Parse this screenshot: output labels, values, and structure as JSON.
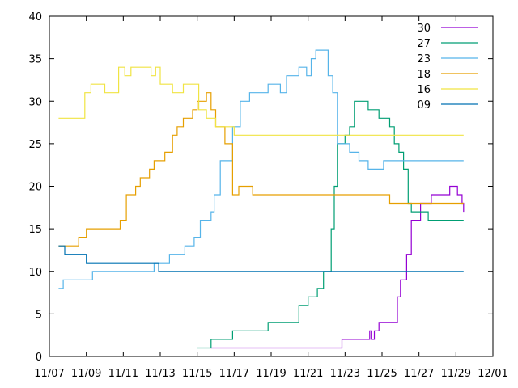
{
  "chart_data": {
    "type": "line",
    "title": "",
    "xlabel": "",
    "ylabel": "",
    "xlim": [
      "2023-11-07",
      "2023-12-01"
    ],
    "ylim": [
      0,
      40
    ],
    "grid": false,
    "legend_position": "top-right",
    "x_ticks": [
      "11/07",
      "11/09",
      "11/11",
      "11/13",
      "11/15",
      "11/17",
      "11/19",
      "11/21",
      "11/23",
      "11/25",
      "11/27",
      "11/29",
      "12/01"
    ],
    "y_ticks": [
      "0",
      "5",
      "10",
      "15",
      "20",
      "25",
      "30",
      "35",
      "40"
    ],
    "series": [
      {
        "name": "30",
        "color": "#9400d3",
        "x": [
          "2023-11-15T18:00",
          "2023-11-22T20:00",
          "2023-11-22T20:00",
          "2023-11-24T06:00",
          "2023-11-24T08:00",
          "2023-11-24T10:00",
          "2023-11-24T14:00",
          "2023-11-24T20:00",
          "2023-11-25T08:00",
          "2023-11-25T20:00",
          "2023-11-26T00:00",
          "2023-11-26T08:00",
          "2023-11-26T14:00",
          "2023-11-26T20:00",
          "2023-11-27T02:00",
          "2023-11-27T10:00",
          "2023-11-27T16:00",
          "2023-11-28T12:00",
          "2023-11-28T16:00",
          "2023-11-29T02:00",
          "2023-11-29T08:00",
          "2023-11-29T10:00"
        ],
        "y": [
          1,
          1,
          2,
          2,
          3,
          2,
          3,
          4,
          4,
          7,
          9,
          12,
          16,
          16,
          18,
          18,
          19,
          19,
          20,
          19,
          18,
          17
        ]
      },
      {
        "name": "27",
        "color": "#009e73",
        "x": [
          "2023-11-15T00:00",
          "2023-11-15T18:00",
          "2023-11-16T22:00",
          "2023-11-18T20:00",
          "2023-11-20T12:00",
          "2023-11-21T00:00",
          "2023-11-21T12:00",
          "2023-11-21T20:00",
          "2023-11-22T06:00",
          "2023-11-22T10:00",
          "2023-11-22T14:00",
          "2023-11-23T00:00",
          "2023-11-23T06:00",
          "2023-11-23T12:00",
          "2023-11-24T06:00",
          "2023-11-24T20:00",
          "2023-11-25T10:00",
          "2023-11-25T16:00",
          "2023-11-25T22:00",
          "2023-11-26T04:00",
          "2023-11-26T10:00",
          "2023-11-26T14:00",
          "2023-11-26T20:00",
          "2023-11-27T12:00",
          "2023-11-27T22:00",
          "2023-11-29T10:00"
        ],
        "y": [
          1,
          2,
          3,
          4,
          6,
          7,
          8,
          10,
          15,
          20,
          25,
          26,
          27,
          30,
          29,
          28,
          27,
          25,
          24,
          22,
          18,
          17,
          17,
          16,
          16,
          16
        ]
      },
      {
        "name": "23",
        "color": "#56b4e9",
        "x": [
          "2023-11-07T12:00",
          "2023-11-07T18:00",
          "2023-11-08T22:00",
          "2023-11-09T08:00",
          "2023-11-12T16:00",
          "2023-11-13T12:00",
          "2023-11-14T08:00",
          "2023-11-14T20:00",
          "2023-11-15T04:00",
          "2023-11-15T18:00",
          "2023-11-15T22:00",
          "2023-11-16T06:00",
          "2023-11-16T16:00",
          "2023-11-16T22:00",
          "2023-11-17T08:00",
          "2023-11-17T20:00",
          "2023-11-18T20:00",
          "2023-11-19T12:00",
          "2023-11-19T20:00",
          "2023-11-20T12:00",
          "2023-11-20T22:00",
          "2023-11-21T04:00",
          "2023-11-21T10:00",
          "2023-11-21T18:00",
          "2023-11-22T02:00",
          "2023-11-22T08:00",
          "2023-11-22T14:00",
          "2023-11-22T20:00",
          "2023-11-23T06:00",
          "2023-11-23T18:00",
          "2023-11-24T06:00",
          "2023-11-25T02:00",
          "2023-11-29T10:00"
        ],
        "y": [
          8,
          9,
          9,
          10,
          11,
          12,
          13,
          14,
          16,
          17,
          19,
          23,
          23,
          27,
          30,
          31,
          32,
          31,
          33,
          34,
          33,
          35,
          36,
          36,
          33,
          31,
          25,
          25,
          24,
          23,
          22,
          23,
          23
        ]
      },
      {
        "name": "18",
        "color": "#e69f00",
        "x": [
          "2023-11-07T12:00",
          "2023-11-08T10:00",
          "2023-11-08T14:00",
          "2023-11-09T00:00",
          "2023-11-10T12:00",
          "2023-11-10T20:00",
          "2023-11-11T04:00",
          "2023-11-11T16:00",
          "2023-11-11T22:00",
          "2023-11-12T10:00",
          "2023-11-12T16:00",
          "2023-11-13T06:00",
          "2023-11-13T16:00",
          "2023-11-13T22:00",
          "2023-11-14T06:00",
          "2023-11-14T18:00",
          "2023-11-15T00:00",
          "2023-11-15T12:00",
          "2023-11-15T18:00",
          "2023-11-16T00:00",
          "2023-11-16T12:00",
          "2023-11-16T22:00",
          "2023-11-17T06:00",
          "2023-11-18T00:00",
          "2023-11-25T10:00",
          "2023-11-29T10:00"
        ],
        "y": [
          13,
          13,
          14,
          15,
          15,
          16,
          19,
          20,
          21,
          22,
          23,
          24,
          26,
          27,
          28,
          29,
          30,
          31,
          29,
          27,
          25,
          19,
          20,
          19,
          18,
          18
        ]
      },
      {
        "name": "16",
        "color": "#f0e442",
        "x": [
          "2023-11-07T12:00",
          "2023-11-08T12:00",
          "2023-11-08T22:00",
          "2023-11-09T06:00",
          "2023-11-10T00:00",
          "2023-11-10T18:00",
          "2023-11-11T02:00",
          "2023-11-11T10:00",
          "2023-11-12T12:00",
          "2023-11-12T18:00",
          "2023-11-13T00:00",
          "2023-11-13T16:00",
          "2023-11-14T06:00",
          "2023-11-14T18:00",
          "2023-11-15T02:00",
          "2023-11-15T12:00",
          "2023-11-16T00:00",
          "2023-11-16T14:00",
          "2023-11-17T00:00",
          "2023-11-29T10:00"
        ],
        "y": [
          28,
          28,
          31,
          32,
          31,
          34,
          33,
          34,
          33,
          34,
          32,
          31,
          32,
          32,
          29,
          28,
          27,
          27,
          26,
          26
        ]
      },
      {
        "name": "09",
        "color": "#0072b2",
        "x": [
          "2023-11-07T12:00",
          "2023-11-07T20:00",
          "2023-11-08T08:00",
          "2023-11-09T00:00",
          "2023-11-12T22:00",
          "2023-11-29T10:00"
        ],
        "y": [
          13,
          12,
          12,
          11,
          10,
          10
        ]
      }
    ]
  }
}
